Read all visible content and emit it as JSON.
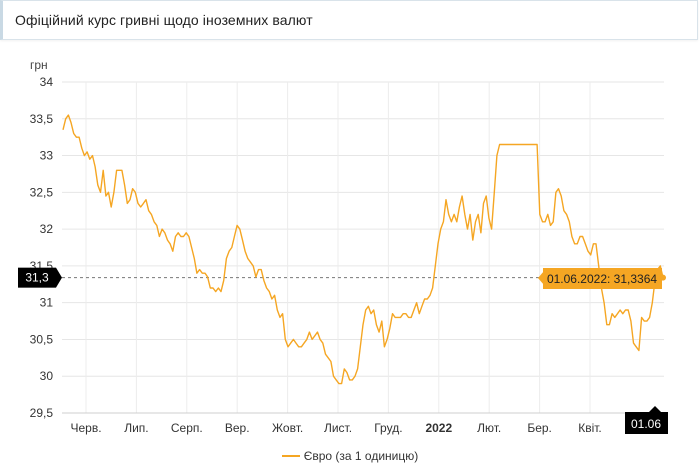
{
  "header": {
    "title": "Офіційний курс гривні щодо іноземних валют"
  },
  "chart_data": {
    "type": "line",
    "title": "",
    "ylabel": "грн",
    "ylim": [
      29.5,
      34
    ],
    "yticks": [
      "29,5",
      "30",
      "30,5",
      "31",
      "31,5",
      "32",
      "32,5",
      "33",
      "33,5",
      "34"
    ],
    "x_labels": [
      "Черв.",
      "Лип.",
      "Серп.",
      "Вер.",
      "Жовт.",
      "Лист.",
      "Груд.",
      "2022",
      "Лют.",
      "Бер.",
      "Квіт."
    ],
    "x_label_bold": "2022",
    "crosshair_y_label": "31,3",
    "crosshair_x_label": "01.06",
    "tooltip": "01.06.2022: 31,3364",
    "legend": "Євро (за 1 одиницю)",
    "color": "#f5a623",
    "series": [
      {
        "name": "Євро (за 1 одиницю)",
        "values": [
          33.35,
          33.5,
          33.55,
          33.45,
          33.3,
          33.25,
          33.25,
          33.1,
          33.0,
          33.05,
          32.95,
          33.0,
          32.85,
          32.6,
          32.5,
          32.8,
          32.45,
          32.5,
          32.3,
          32.5,
          32.8,
          32.8,
          32.8,
          32.6,
          32.35,
          32.4,
          32.55,
          32.5,
          32.35,
          32.3,
          32.35,
          32.4,
          32.25,
          32.2,
          32.1,
          32.05,
          31.9,
          32.0,
          31.95,
          31.85,
          31.8,
          31.7,
          31.9,
          31.95,
          31.9,
          31.9,
          31.95,
          31.9,
          31.75,
          31.6,
          31.4,
          31.45,
          31.4,
          31.4,
          31.35,
          31.2,
          31.2,
          31.15,
          31.2,
          31.15,
          31.3,
          31.6,
          31.7,
          31.75,
          31.9,
          32.05,
          32.0,
          31.85,
          31.7,
          31.6,
          31.55,
          31.5,
          31.35,
          31.45,
          31.45,
          31.3,
          31.2,
          31.15,
          31.05,
          31.1,
          30.9,
          30.8,
          30.85,
          30.5,
          30.4,
          30.45,
          30.5,
          30.45,
          30.4,
          30.4,
          30.45,
          30.5,
          30.6,
          30.5,
          30.55,
          30.6,
          30.5,
          30.45,
          30.3,
          30.25,
          30.2,
          30.0,
          29.95,
          29.9,
          29.9,
          30.1,
          30.05,
          29.95,
          29.95,
          30.0,
          30.1,
          30.4,
          30.7,
          30.9,
          30.95,
          30.85,
          30.9,
          30.7,
          30.6,
          30.75,
          30.4,
          30.5,
          30.65,
          30.85,
          30.8,
          30.8,
          30.8,
          30.85,
          30.85,
          30.8,
          30.8,
          30.9,
          31.0,
          30.85,
          30.95,
          31.05,
          31.05,
          31.1,
          31.2,
          31.5,
          31.8,
          32.0,
          32.1,
          32.4,
          32.2,
          32.1,
          32.2,
          32.1,
          32.3,
          32.45,
          32.2,
          32.0,
          32.2,
          31.85,
          32.1,
          32.2,
          31.95,
          32.35,
          32.45,
          32.15,
          32.0,
          32.5,
          33.0,
          33.15,
          33.15,
          33.15,
          33.15,
          33.15,
          33.15,
          33.15,
          33.15,
          33.15,
          33.15,
          33.15,
          33.15,
          33.15,
          33.15,
          33.15,
          32.2,
          32.1,
          32.1,
          32.2,
          32.05,
          32.1,
          32.5,
          32.55,
          32.45,
          32.25,
          32.2,
          32.1,
          31.9,
          31.8,
          31.8,
          31.9,
          31.9,
          31.8,
          31.7,
          31.65,
          31.8,
          31.8,
          31.5,
          31.2,
          31.0,
          30.7,
          30.7,
          30.85,
          30.8,
          30.85,
          30.9,
          30.85,
          30.9,
          30.9,
          30.75,
          30.45,
          30.4,
          30.35,
          30.8,
          30.75,
          30.75,
          30.8,
          31.0,
          31.3,
          31.45,
          31.5,
          31.34
        ]
      }
    ]
  }
}
